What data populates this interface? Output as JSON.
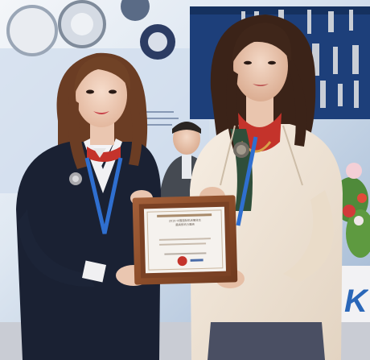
{
  "photo": {
    "subject": "",
    "plaque": {
      "caption_lines": [
        "2019 中国国际机床展览会",
        "最具影响力展商"
      ],
      "seal_text": ""
    },
    "booth_sign_letter": "K"
  },
  "colors": {
    "backdrop_blue": "#1d5aa8",
    "booth_white": "#f2f2f4",
    "plaque_wood": "#8c4d2a",
    "blazer_navy": "#1a2133",
    "jacket_cream": "#f1e6d8",
    "scarf_red": "#c4332b"
  }
}
